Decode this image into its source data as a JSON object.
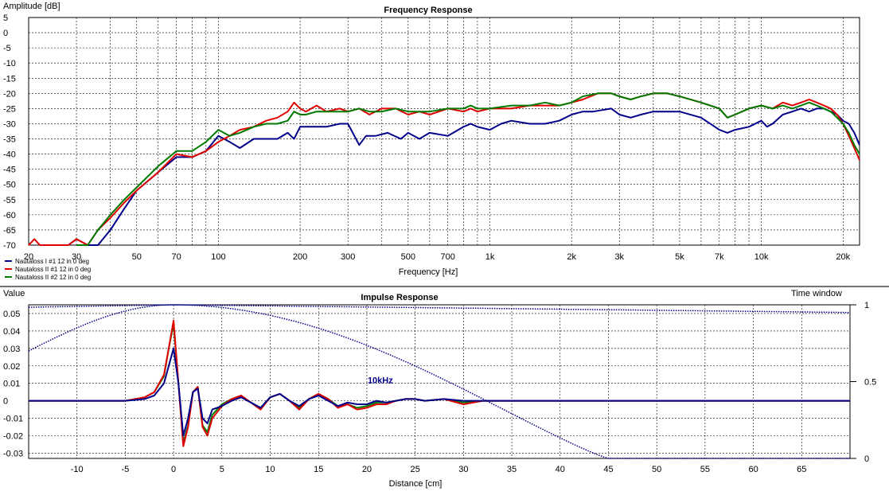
{
  "colors": {
    "blue": "#00008b",
    "red": "#e00000",
    "green": "#007a00",
    "grid": "#000000",
    "frame": "#000000"
  },
  "chart_data": [
    {
      "type": "line",
      "title": "Frequency Response",
      "xlabel": "Frequency [Hz]",
      "ylabel": "Amplitude [dB]",
      "xscale": "log",
      "xlim": [
        20,
        23000
      ],
      "ylim": [
        -70,
        5
      ],
      "xticks": [
        {
          "v": 20,
          "t": "20"
        },
        {
          "v": 30,
          "t": "30"
        },
        {
          "v": 50,
          "t": "50"
        },
        {
          "v": 70,
          "t": "70"
        },
        {
          "v": 100,
          "t": "100"
        },
        {
          "v": 200,
          "t": "200"
        },
        {
          "v": 300,
          "t": "300"
        },
        {
          "v": 500,
          "t": "500"
        },
        {
          "v": 700,
          "t": "700"
        },
        {
          "v": 1000,
          "t": "1k"
        },
        {
          "v": 2000,
          "t": "2k"
        },
        {
          "v": 3000,
          "t": "3k"
        },
        {
          "v": 5000,
          "t": "5k"
        },
        {
          "v": 7000,
          "t": "7k"
        },
        {
          "v": 10000,
          "t": "10k"
        },
        {
          "v": 20000,
          "t": "20k"
        }
      ],
      "yticks": [
        5,
        0,
        -5,
        -10,
        -15,
        -20,
        -25,
        -30,
        -35,
        -40,
        -45,
        -50,
        -55,
        -60,
        -65,
        -70
      ],
      "grid": true,
      "legend": "bottom-left",
      "series": [
        {
          "name": "Nautaloss I #1 12 in 0 deg",
          "color": "blue",
          "x": [
            28,
            30,
            33,
            36,
            40,
            45,
            50,
            60,
            70,
            80,
            90,
            100,
            110,
            120,
            135,
            150,
            165,
            180,
            190,
            200,
            220,
            250,
            280,
            300,
            330,
            350,
            380,
            420,
            470,
            500,
            550,
            600,
            700,
            800,
            850,
            900,
            1000,
            1100,
            1200,
            1400,
            1600,
            1800,
            2000,
            2200,
            2400,
            2800,
            3000,
            3300,
            3600,
            4000,
            4500,
            5000,
            6000,
            7000,
            7500,
            8000,
            9000,
            10000,
            10500,
            11000,
            12000,
            13000,
            14000,
            15000,
            16000,
            17000,
            18000,
            19000,
            20000,
            21000,
            22000,
            23000
          ],
          "y": [
            -70,
            -68,
            -70,
            -70,
            -65,
            -58,
            -52,
            -46,
            -41,
            -41,
            -39,
            -34,
            -36,
            -38,
            -35,
            -35,
            -35,
            -33,
            -35,
            -31,
            -31,
            -31,
            -30,
            -30,
            -37,
            -34,
            -34,
            -33,
            -35,
            -33,
            -35,
            -33,
            -34,
            -31,
            -30,
            -31,
            -32,
            -30,
            -29,
            -30,
            -30,
            -29,
            -27,
            -26,
            -26,
            -25,
            -27,
            -28,
            -27,
            -26,
            -26,
            -26,
            -28,
            -32,
            -33,
            -32,
            -31,
            -29,
            -31,
            -30,
            -27,
            -26,
            -25,
            -26,
            -25,
            -25,
            -26,
            -27,
            -29,
            -30,
            -33,
            -37
          ]
        },
        {
          "name": "Nautaloss II #1 12 in 0 deg",
          "color": "red",
          "x": [
            20,
            21,
            22,
            28,
            30,
            33,
            36,
            40,
            45,
            50,
            60,
            70,
            80,
            90,
            100,
            110,
            120,
            135,
            150,
            165,
            180,
            190,
            200,
            210,
            230,
            250,
            280,
            300,
            330,
            360,
            400,
            450,
            500,
            550,
            600,
            700,
            800,
            850,
            900,
            1000,
            1200,
            1400,
            1600,
            1800,
            2000,
            2200,
            2500,
            2800,
            3000,
            3300,
            3600,
            4000,
            4500,
            5000,
            6000,
            7000,
            7500,
            8000,
            9000,
            10000,
            11000,
            12000,
            13000,
            14000,
            15000,
            16000,
            17000,
            18000,
            19000,
            20000,
            21000,
            22000,
            23000
          ],
          "y": [
            -70,
            -68,
            -70,
            -70,
            -68,
            -70,
            -65,
            -61,
            -56,
            -52,
            -46,
            -40,
            -41,
            -39,
            -36,
            -34,
            -32,
            -31,
            -29,
            -28,
            -26,
            -23,
            -25,
            -26,
            -24,
            -26,
            -25,
            -26,
            -25,
            -27,
            -25,
            -25,
            -27,
            -26,
            -27,
            -25,
            -26,
            -25,
            -26,
            -25,
            -25,
            -24,
            -24,
            -24,
            -23,
            -22,
            -20,
            -20,
            -21,
            -22,
            -21,
            -20,
            -20,
            -21,
            -23,
            -25,
            -28,
            -27,
            -25,
            -24,
            -25,
            -23,
            -24,
            -23,
            -22,
            -23,
            -24,
            -25,
            -27,
            -30,
            -34,
            -38,
            -42
          ]
        },
        {
          "name": "Nautaloss II #2 12 in 0 deg",
          "color": "green",
          "x": [
            30,
            33,
            36,
            40,
            45,
            50,
            60,
            70,
            80,
            90,
            100,
            110,
            120,
            135,
            150,
            165,
            180,
            190,
            200,
            210,
            230,
            250,
            280,
            300,
            330,
            360,
            400,
            450,
            500,
            550,
            600,
            700,
            800,
            850,
            900,
            1000,
            1200,
            1400,
            1600,
            1800,
            2000,
            2200,
            2500,
            2800,
            3000,
            3300,
            3600,
            4000,
            4500,
            5000,
            6000,
            7000,
            7500,
            8000,
            9000,
            10000,
            11000,
            12000,
            13000,
            14000,
            15000,
            16000,
            17000,
            18000,
            19000,
            20000,
            21000,
            22000,
            23000
          ],
          "y": [
            -70,
            -70,
            -65,
            -60,
            -55,
            -51,
            -44,
            -39,
            -39,
            -36,
            -32,
            -34,
            -33,
            -31,
            -30,
            -30,
            -29,
            -26,
            -27,
            -27,
            -26,
            -26,
            -26,
            -26,
            -25,
            -26,
            -26,
            -25,
            -26,
            -26,
            -26,
            -25,
            -25,
            -24,
            -25,
            -25,
            -24,
            -24,
            -23,
            -24,
            -23,
            -21,
            -20,
            -20,
            -21,
            -22,
            -21,
            -20,
            -20,
            -21,
            -23,
            -25,
            -28,
            -27,
            -25,
            -24,
            -25,
            -24,
            -25,
            -24,
            -23,
            -24,
            -25,
            -26,
            -28,
            -30,
            -33,
            -37,
            -40
          ]
        }
      ]
    },
    {
      "type": "line",
      "title": "Impulse Response",
      "xlabel": "Distance [cm]",
      "ylabel": "Value",
      "y2label": "Time window",
      "xlim": [
        -15,
        70
      ],
      "ylim": [
        -0.033,
        0.055
      ],
      "y2lim": [
        0,
        1
      ],
      "xticks": [
        -10,
        -5,
        0,
        5,
        10,
        15,
        20,
        25,
        30,
        35,
        40,
        45,
        50,
        55,
        60,
        65
      ],
      "yticks": [
        0.05,
        0.04,
        0.03,
        0.02,
        0.01,
        0,
        -0.01,
        -0.02,
        -0.03
      ],
      "y2ticks": [
        {
          "v": 1,
          "t": "1"
        },
        {
          "v": 0.5,
          "t": "0.5"
        },
        {
          "v": 0,
          "t": "0"
        }
      ],
      "annotation": {
        "text": "10kHz",
        "x": 20,
        "y2": 0.5
      },
      "grid": true,
      "series": [
        {
          "name": "Nautaloss I #1 12 in 0 deg",
          "color": "blue",
          "x": [
            -15,
            -5,
            -3,
            -2,
            -1,
            -0.5,
            0,
            0.5,
            1,
            1.5,
            2,
            2.5,
            3,
            3.5,
            4,
            5,
            6,
            7,
            8,
            9,
            10,
            11,
            12,
            13,
            14,
            15,
            16,
            17,
            18,
            19,
            20,
            21,
            22,
            23,
            24,
            25,
            26,
            28,
            30,
            35,
            40,
            45,
            50,
            55,
            60,
            65,
            70
          ],
          "y": [
            0,
            0,
            0.001,
            0.003,
            0.01,
            0.02,
            0.03,
            0.01,
            -0.02,
            -0.01,
            0.005,
            0.007,
            -0.01,
            -0.013,
            -0.005,
            -0.003,
            0,
            0.002,
            -0.001,
            -0.004,
            0.002,
            0.004,
            0,
            -0.003,
            0.001,
            0.003,
            0,
            -0.003,
            -0.001,
            -0.002,
            -0.002,
            0,
            -0.001,
            0,
            0.001,
            0.001,
            0,
            0.001,
            0,
            0,
            0,
            0,
            0,
            0,
            0,
            0,
            0
          ]
        },
        {
          "name": "Nautaloss II #1 12 in 0 deg",
          "color": "red",
          "x": [
            -15,
            -5,
            -3,
            -2,
            -1,
            -0.5,
            0,
            0.5,
            1,
            1.5,
            2,
            2.5,
            3,
            3.5,
            4,
            5,
            6,
            7,
            8,
            9,
            10,
            11,
            12,
            13,
            14,
            15,
            16,
            17,
            18,
            19,
            20,
            21,
            22,
            23,
            24,
            25,
            26,
            28,
            30,
            32,
            35,
            40,
            45,
            50,
            55,
            60,
            65,
            70
          ],
          "y": [
            0,
            0,
            0.002,
            0.005,
            0.015,
            0.03,
            0.046,
            0.01,
            -0.026,
            -0.015,
            0.005,
            0.008,
            -0.015,
            -0.02,
            -0.01,
            -0.003,
            0.001,
            0.003,
            -0.001,
            -0.005,
            0.002,
            0.004,
            0,
            -0.005,
            0.001,
            0.004,
            0.001,
            -0.004,
            -0.002,
            -0.005,
            -0.004,
            -0.002,
            -0.002,
            0,
            0.001,
            0.001,
            0,
            0.001,
            -0.002,
            0,
            0,
            0,
            0,
            0,
            0,
            0,
            0,
            0
          ]
        },
        {
          "name": "Nautaloss II #2 12 in 0 deg",
          "color": "green",
          "x": [
            -15,
            -5,
            -3,
            -2,
            -1,
            -0.5,
            0,
            0.5,
            1,
            1.5,
            2,
            2.5,
            3,
            3.5,
            4,
            5,
            6,
            7,
            8,
            9,
            10,
            11,
            12,
            13,
            14,
            15,
            16,
            17,
            18,
            19,
            20,
            21,
            22,
            23,
            24,
            25,
            26,
            28,
            30,
            32,
            35,
            40,
            45,
            50,
            55,
            60,
            65,
            70
          ],
          "y": [
            0,
            0,
            0.002,
            0.005,
            0.014,
            0.03,
            0.044,
            0.01,
            -0.024,
            -0.014,
            0.005,
            0.008,
            -0.014,
            -0.018,
            -0.008,
            -0.002,
            0.001,
            0.003,
            -0.001,
            -0.004,
            0.002,
            0.004,
            0,
            -0.004,
            0.001,
            0.004,
            0.001,
            -0.003,
            -0.002,
            -0.004,
            -0.003,
            -0.001,
            -0.001,
            0,
            0.001,
            0.001,
            0,
            0.001,
            -0.001,
            0,
            0,
            0,
            0,
            0,
            0,
            0,
            0,
            0
          ]
        }
      ]
    }
  ]
}
